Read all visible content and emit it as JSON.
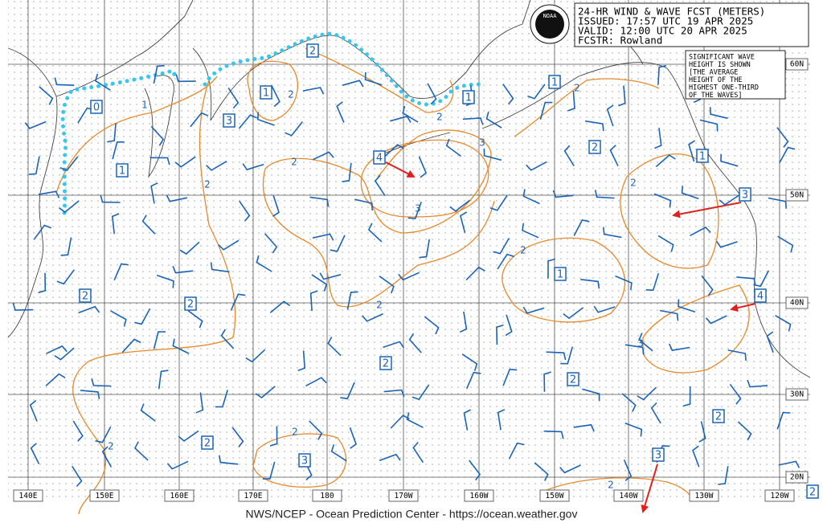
{
  "header": {
    "title": "24-HR WIND & WAVE FCST (METERS)",
    "issued": "ISSUED: 17:57 UTC 19 APR 2025",
    "valid": "VALID:  12:00 UTC 20 APR 2025",
    "forecaster": "FCSTR:  Rowland",
    "logo": "NOAA"
  },
  "note": [
    "SIGNIFICANT WAVE",
    "HEIGHT IS SHOWN",
    "[THE AVERAGE",
    "HEIGHT OF THE",
    "HIGHEST ONE-THIRD",
    "OF THE WAVES]"
  ],
  "longitude_labels": [
    "140E",
    "150E",
    "160E",
    "170E",
    "180",
    "170W",
    "160W",
    "150W",
    "140W",
    "130W",
    "120W"
  ],
  "latitude_labels": [
    "60N",
    "50N",
    "40N",
    "30N",
    "20N"
  ],
  "wave_boxes": [
    0,
    1,
    3,
    1,
    2,
    1,
    1,
    2,
    1,
    3,
    4,
    1,
    2,
    2,
    4,
    2,
    2,
    2,
    2,
    3,
    3,
    2
  ],
  "contour_labels": [
    1,
    2,
    2,
    3,
    2,
    2,
    2,
    3,
    2,
    2,
    2,
    3,
    2,
    2,
    2
  ],
  "footer": "NWS/NCEP - Ocean Prediction Center - https://ocean.weather.gov"
}
